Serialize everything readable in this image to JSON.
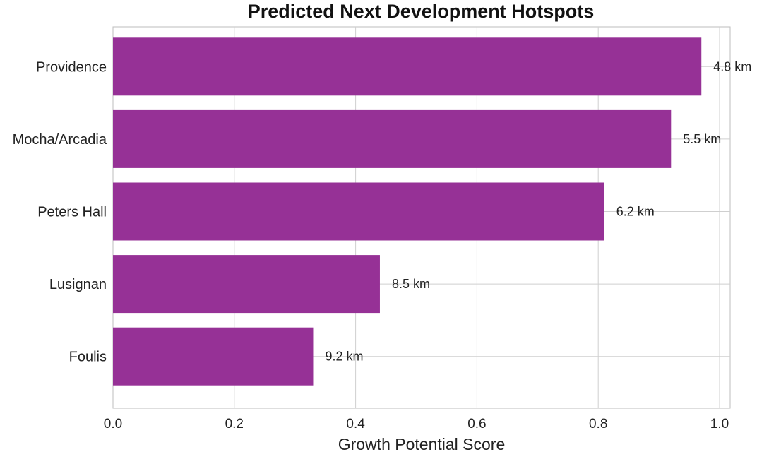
{
  "chart_data": {
    "type": "bar",
    "orientation": "horizontal",
    "title": "Predicted Next Development Hotspots",
    "xlabel": "Growth Potential Score",
    "ylabel": "",
    "xlim": [
      0,
      1.0
    ],
    "xticks": [
      "0.0",
      "0.2",
      "0.4",
      "0.6",
      "0.8",
      "1.0"
    ],
    "grid": true,
    "legend": "none",
    "categories": [
      "Providence",
      "Mocha/Arcadia",
      "Peters Hall",
      "Lusignan",
      "Foulis"
    ],
    "values": [
      0.97,
      0.92,
      0.81,
      0.44,
      0.33
    ],
    "data_labels": [
      "4.8 km",
      "5.5 km",
      "6.2 km",
      "8.5 km",
      "9.2 km"
    ],
    "bar_color": "#963196",
    "grid_color": "#cfcfcf"
  }
}
